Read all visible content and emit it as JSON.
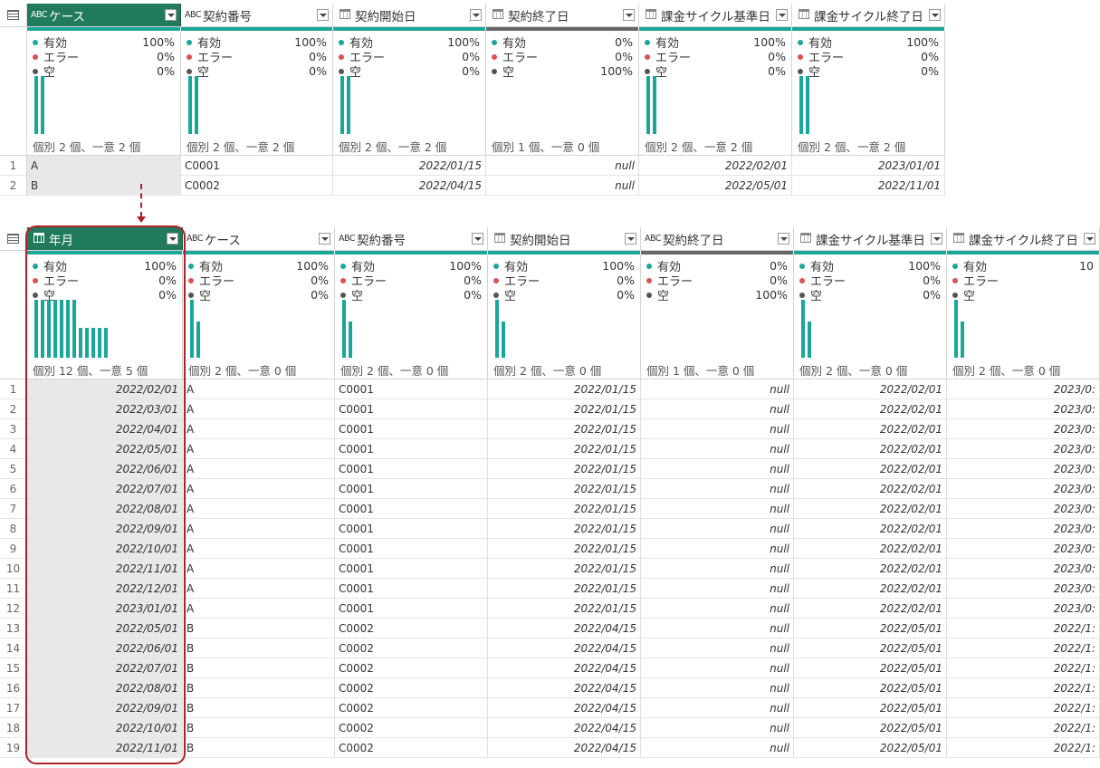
{
  "colors": {
    "accent": "#1aa79a",
    "selected_header": "#227a5e",
    "highlight": "#b0202a",
    "quality_gray": "#666666",
    "error": "#e05050",
    "empty": "#555555"
  },
  "profile_labels": {
    "valid": "有効",
    "error": "エラー",
    "empty": "空"
  },
  "top": {
    "columns": [
      {
        "name": "ケース",
        "type": "text",
        "selected": true,
        "valid": "100%",
        "error": "0%",
        "empty": "0%",
        "dist": "個別 2 個、一意 2 個",
        "bars": [
          1,
          1
        ],
        "quality": "green"
      },
      {
        "name": "契約番号",
        "type": "text",
        "selected": false,
        "valid": "100%",
        "error": "0%",
        "empty": "0%",
        "dist": "個別 2 個、一意 2 個",
        "bars": [
          1,
          1
        ],
        "quality": "green"
      },
      {
        "name": "契約開始日",
        "type": "date",
        "selected": false,
        "valid": "100%",
        "error": "0%",
        "empty": "0%",
        "dist": "個別 2 個、一意 2 個",
        "bars": [
          1,
          1
        ],
        "quality": "green"
      },
      {
        "name": "契約終了日",
        "type": "date",
        "selected": false,
        "valid": "0%",
        "error": "0%",
        "empty": "100%",
        "dist": "個別 1 個、一意 0 個",
        "bars": [],
        "quality": "gray"
      },
      {
        "name": "課金サイクル基準日",
        "type": "date",
        "selected": false,
        "valid": "100%",
        "error": "0%",
        "empty": "0%",
        "dist": "個別 2 個、一意 2 個",
        "bars": [
          1,
          1
        ],
        "quality": "green"
      },
      {
        "name": "課金サイクル終了日",
        "type": "date",
        "selected": false,
        "valid": "100%",
        "error": "0%",
        "empty": "0%",
        "dist": "個別 2 個、一意 2 個",
        "bars": [
          1,
          1
        ],
        "quality": "green"
      }
    ],
    "rows": [
      [
        "1",
        "A",
        "C0001",
        "2022/01/15",
        "null",
        "2022/02/01",
        "2023/01/01"
      ],
      [
        "2",
        "B",
        "C0002",
        "2022/04/15",
        "null",
        "2022/05/01",
        "2022/11/01"
      ]
    ]
  },
  "bottom": {
    "columns": [
      {
        "name": "年月",
        "type": "date",
        "selected": true,
        "valid": "100%",
        "error": "0%",
        "empty": "0%",
        "dist": "個別 12 個、一意 5 個",
        "bars": [
          1,
          1,
          1,
          1,
          1,
          1,
          1,
          0.52,
          0.52,
          0.52,
          0.52,
          0.52
        ],
        "quality": "green"
      },
      {
        "name": "ケース",
        "type": "text",
        "selected": false,
        "valid": "100%",
        "error": "0%",
        "empty": "0%",
        "dist": "個別 2 個、一意 0 個",
        "bars": [
          1,
          0.62
        ],
        "quality": "green"
      },
      {
        "name": "契約番号",
        "type": "text",
        "selected": false,
        "valid": "100%",
        "error": "0%",
        "empty": "0%",
        "dist": "個別 2 個、一意 0 個",
        "bars": [
          1,
          0.62
        ],
        "quality": "green"
      },
      {
        "name": "契約開始日",
        "type": "date",
        "selected": false,
        "valid": "100%",
        "error": "0%",
        "empty": "0%",
        "dist": "個別 2 個、一意 0 個",
        "bars": [
          1,
          0.62
        ],
        "quality": "green"
      },
      {
        "name": "契約終了日",
        "type": "text",
        "selected": false,
        "valid": "0%",
        "error": "0%",
        "empty": "100%",
        "dist": "個別 1 個、一意 0 個",
        "bars": [],
        "quality": "gray"
      },
      {
        "name": "課金サイクル基準日",
        "type": "date",
        "selected": false,
        "valid": "100%",
        "error": "0%",
        "empty": "0%",
        "dist": "個別 2 個、一意 0 個",
        "bars": [
          1,
          0.62
        ],
        "quality": "green"
      },
      {
        "name": "課金サイクル終了日",
        "type": "date",
        "selected": false,
        "valid": "10",
        "error": "",
        "empty": "",
        "dist": "個別 2 個、一意 0 個",
        "bars": [
          1,
          0.62
        ],
        "quality": "green"
      }
    ],
    "rows": [
      [
        "1",
        "2022/02/01",
        "A",
        "C0001",
        "2022/01/15",
        "null",
        "2022/02/01",
        "2023/0:"
      ],
      [
        "2",
        "2022/03/01",
        "A",
        "C0001",
        "2022/01/15",
        "null",
        "2022/02/01",
        "2023/0:"
      ],
      [
        "3",
        "2022/04/01",
        "A",
        "C0001",
        "2022/01/15",
        "null",
        "2022/02/01",
        "2023/0:"
      ],
      [
        "4",
        "2022/05/01",
        "A",
        "C0001",
        "2022/01/15",
        "null",
        "2022/02/01",
        "2023/0:"
      ],
      [
        "5",
        "2022/06/01",
        "A",
        "C0001",
        "2022/01/15",
        "null",
        "2022/02/01",
        "2023/0:"
      ],
      [
        "6",
        "2022/07/01",
        "A",
        "C0001",
        "2022/01/15",
        "null",
        "2022/02/01",
        "2023/0:"
      ],
      [
        "7",
        "2022/08/01",
        "A",
        "C0001",
        "2022/01/15",
        "null",
        "2022/02/01",
        "2023/0:"
      ],
      [
        "8",
        "2022/09/01",
        "A",
        "C0001",
        "2022/01/15",
        "null",
        "2022/02/01",
        "2023/0:"
      ],
      [
        "9",
        "2022/10/01",
        "A",
        "C0001",
        "2022/01/15",
        "null",
        "2022/02/01",
        "2023/0:"
      ],
      [
        "10",
        "2022/11/01",
        "A",
        "C0001",
        "2022/01/15",
        "null",
        "2022/02/01",
        "2023/0:"
      ],
      [
        "11",
        "2022/12/01",
        "A",
        "C0001",
        "2022/01/15",
        "null",
        "2022/02/01",
        "2023/0:"
      ],
      [
        "12",
        "2023/01/01",
        "A",
        "C0001",
        "2022/01/15",
        "null",
        "2022/02/01",
        "2023/0:"
      ],
      [
        "13",
        "2022/05/01",
        "B",
        "C0002",
        "2022/04/15",
        "null",
        "2022/05/01",
        "2022/1:"
      ],
      [
        "14",
        "2022/06/01",
        "B",
        "C0002",
        "2022/04/15",
        "null",
        "2022/05/01",
        "2022/1:"
      ],
      [
        "15",
        "2022/07/01",
        "B",
        "C0002",
        "2022/04/15",
        "null",
        "2022/05/01",
        "2022/1:"
      ],
      [
        "16",
        "2022/08/01",
        "B",
        "C0002",
        "2022/04/15",
        "null",
        "2022/05/01",
        "2022/1:"
      ],
      [
        "17",
        "2022/09/01",
        "B",
        "C0002",
        "2022/04/15",
        "null",
        "2022/05/01",
        "2022/1:"
      ],
      [
        "18",
        "2022/10/01",
        "B",
        "C0002",
        "2022/04/15",
        "null",
        "2022/05/01",
        "2022/1:"
      ],
      [
        "19",
        "2022/11/01",
        "B",
        "C0002",
        "2022/04/15",
        "null",
        "2022/05/01",
        "2022/1:"
      ]
    ]
  }
}
